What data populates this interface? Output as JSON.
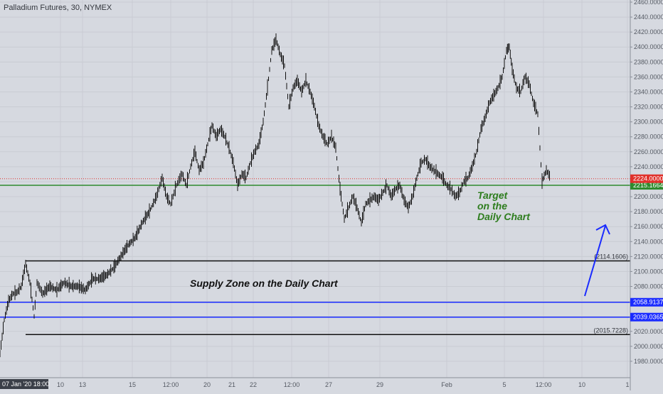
{
  "header": {
    "title": "Palladium Futures, 30, NYMEX"
  },
  "colors": {
    "background": "#d6d9e0",
    "candles": "#111111",
    "supply_line": "#111111",
    "blue_line": "#1a2bff",
    "green_line": "#2e8b2e",
    "red_dotted": "#e0312b",
    "target_text": "#2e7d1e",
    "arrow": "#1a2bff"
  },
  "chart_data": {
    "type": "line",
    "title": "Palladium Futures, 30, NYMEX",
    "ylim": [
      1960,
      2460
    ],
    "y_ticks": [
      "1980.0000",
      "2000.0000",
      "2020.0000",
      "2040.0000",
      "2060.0000",
      "2080.0000",
      "2100.0000",
      "2120.0000",
      "2140.0000",
      "2160.0000",
      "2180.0000",
      "2200.0000",
      "2220.0000",
      "2240.0000",
      "2260.0000",
      "2280.0000",
      "2300.0000",
      "2320.0000",
      "2340.0000",
      "2360.0000",
      "2380.0000",
      "2400.0000",
      "2420.0000",
      "2440.0000",
      "2460.0000"
    ],
    "x_ticks": [
      "10",
      "13",
      "15",
      "12:00",
      "20",
      "21",
      "22",
      "12:00",
      "27",
      "29",
      "Feb",
      "5",
      "12:00",
      "10",
      "1"
    ],
    "cursor_label": "07 Jan '20   18:00",
    "grid": true,
    "series": [
      {
        "points": [
          [
            0,
            1990
          ],
          [
            6,
            2035
          ],
          [
            12,
            2060
          ],
          [
            18,
            2070
          ],
          [
            24,
            2072
          ],
          [
            30,
            2080
          ],
          [
            36,
            2110
          ],
          [
            42,
            2085
          ],
          [
            48,
            2040
          ],
          [
            52,
            2085
          ],
          [
            60,
            2070
          ],
          [
            70,
            2080
          ],
          [
            80,
            2075
          ],
          [
            90,
            2085
          ],
          [
            100,
            2080
          ],
          [
            110,
            2080
          ],
          [
            120,
            2075
          ],
          [
            130,
            2090
          ],
          [
            140,
            2090
          ],
          [
            150,
            2095
          ],
          [
            160,
            2105
          ],
          [
            170,
            2120
          ],
          [
            180,
            2135
          ],
          [
            190,
            2145
          ],
          [
            200,
            2165
          ],
          [
            210,
            2180
          ],
          [
            220,
            2200
          ],
          [
            228,
            2225
          ],
          [
            234,
            2200
          ],
          [
            240,
            2190
          ],
          [
            248,
            2215
          ],
          [
            256,
            2230
          ],
          [
            262,
            2215
          ],
          [
            268,
            2240
          ],
          [
            274,
            2260
          ],
          [
            280,
            2235
          ],
          [
            286,
            2245
          ],
          [
            292,
            2270
          ],
          [
            298,
            2295
          ],
          [
            304,
            2280
          ],
          [
            310,
            2290
          ],
          [
            316,
            2280
          ],
          [
            322,
            2265
          ],
          [
            328,
            2245
          ],
          [
            334,
            2215
          ],
          [
            340,
            2230
          ],
          [
            346,
            2225
          ],
          [
            352,
            2245
          ],
          [
            358,
            2260
          ],
          [
            364,
            2270
          ],
          [
            370,
            2300
          ],
          [
            376,
            2345
          ],
          [
            382,
            2395
          ],
          [
            388,
            2410
          ],
          [
            394,
            2390
          ],
          [
            400,
            2375
          ],
          [
            406,
            2320
          ],
          [
            412,
            2345
          ],
          [
            418,
            2355
          ],
          [
            424,
            2340
          ],
          [
            430,
            2355
          ],
          [
            436,
            2340
          ],
          [
            442,
            2320
          ],
          [
            448,
            2295
          ],
          [
            454,
            2280
          ],
          [
            460,
            2270
          ],
          [
            466,
            2280
          ],
          [
            472,
            2265
          ],
          [
            478,
            2210
          ],
          [
            484,
            2170
          ],
          [
            490,
            2185
          ],
          [
            496,
            2200
          ],
          [
            502,
            2185
          ],
          [
            508,
            2165
          ],
          [
            514,
            2190
          ],
          [
            520,
            2195
          ],
          [
            526,
            2200
          ],
          [
            532,
            2195
          ],
          [
            538,
            2205
          ],
          [
            544,
            2215
          ],
          [
            550,
            2200
          ],
          [
            556,
            2210
          ],
          [
            562,
            2215
          ],
          [
            568,
            2195
          ],
          [
            574,
            2185
          ],
          [
            580,
            2200
          ],
          [
            586,
            2225
          ],
          [
            592,
            2245
          ],
          [
            598,
            2250
          ],
          [
            604,
            2240
          ],
          [
            610,
            2235
          ],
          [
            616,
            2230
          ],
          [
            622,
            2225
          ],
          [
            628,
            2215
          ],
          [
            634,
            2210
          ],
          [
            640,
            2200
          ],
          [
            646,
            2205
          ],
          [
            652,
            2220
          ],
          [
            658,
            2225
          ],
          [
            664,
            2240
          ],
          [
            670,
            2260
          ],
          [
            676,
            2290
          ],
          [
            682,
            2305
          ],
          [
            688,
            2325
          ],
          [
            694,
            2335
          ],
          [
            700,
            2345
          ],
          [
            706,
            2360
          ],
          [
            712,
            2395
          ],
          [
            716,
            2400
          ],
          [
            720,
            2370
          ],
          [
            726,
            2345
          ],
          [
            732,
            2340
          ],
          [
            738,
            2360
          ],
          [
            744,
            2350
          ],
          [
            750,
            2325
          ],
          [
            756,
            2310
          ],
          [
            762,
            2220
          ],
          [
            768,
            2235
          ],
          [
            774,
            2225
          ]
        ]
      }
    ],
    "levels": [
      {
        "kind": "supply-top",
        "value": 2114.1606,
        "label": "(2114.1606)"
      },
      {
        "kind": "supply-bottom",
        "value": 2015.7228,
        "label": "(2015.7228)"
      },
      {
        "kind": "blue",
        "value": 2058.9137,
        "label": "2058.9137"
      },
      {
        "kind": "blue",
        "value": 2039.0365,
        "label": "2039.0365"
      },
      {
        "kind": "green",
        "value": 2215.1664,
        "label": "2215.1664"
      },
      {
        "kind": "red-dotted",
        "value": 2224.0,
        "label": "2224.0000"
      }
    ],
    "annotations": {
      "supply_text": "Supply Zone on the Daily Chart",
      "target_lines": [
        "Target",
        "on the",
        "Daily Chart"
      ]
    }
  }
}
